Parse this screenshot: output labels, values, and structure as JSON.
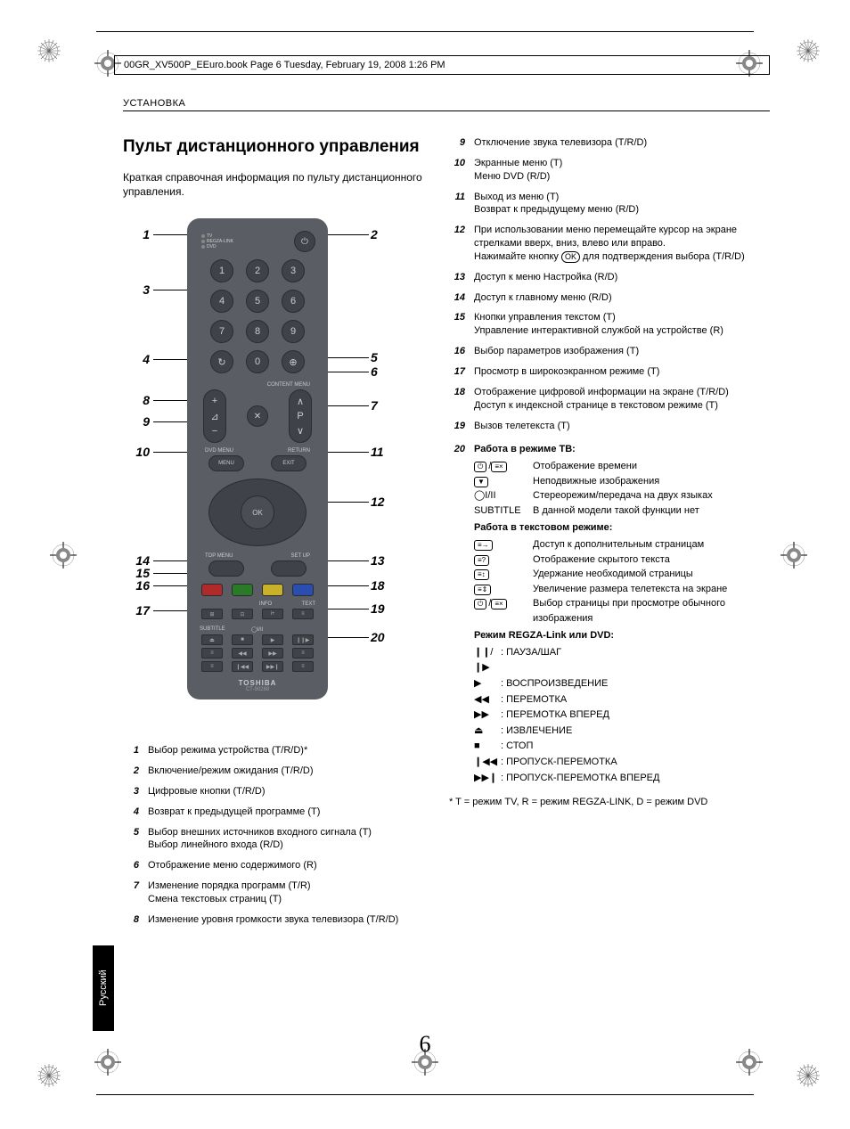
{
  "header_text": "00GR_XV500P_EEuro.book  Page 6  Tuesday, February 19, 2008  1:26 PM",
  "section_header": "УСТАНОВКА",
  "title": "Пульт дистанционного управления",
  "intro": "Краткая справочная информация по пульту дистанционного управления.",
  "remote": {
    "modes": [
      "TV",
      "REGZA-LINK",
      "DVD"
    ],
    "numbers": [
      "1",
      "2",
      "3",
      "4",
      "5",
      "6",
      "7",
      "8",
      "9",
      "↻",
      "0",
      "⊕"
    ],
    "content_menu": "CONTENT MENU",
    "p_up": "∧",
    "p_dn": "∨",
    "p_label": "P",
    "vol_up": "+",
    "vol_dn": "−",
    "mute": "✕",
    "dvd_menu_lbl": "DVD MENU",
    "return_lbl": "RETURN",
    "menu": "MENU",
    "exit": "EXIT",
    "ok": "OK",
    "top_menu_lbl": "TOP MENU",
    "setup_lbl": "SET UP",
    "info_lbl": "INFO",
    "text_lbl": "TEXT",
    "subtitle_lbl": "SUBTITLE",
    "brand": "TOSHIBA",
    "model": "CT-90288",
    "colors": [
      "#b02a2a",
      "#2a7a2a",
      "#c9b22a",
      "#2a4db0"
    ]
  },
  "callouts_left": {
    "1": 18,
    "3": 80,
    "4": 158,
    "8": 204,
    "9": 228,
    "10": 262,
    "14": 384,
    "15": 398,
    "16": 412,
    "17": 440
  },
  "callouts_right": {
    "2": 18,
    "5": 156,
    "6": 172,
    "7": 210,
    "11": 262,
    "12": 318,
    "13": 384,
    "18": 412,
    "19": 438,
    "20": 470
  },
  "items_left": [
    {
      "n": "1",
      "t": "Выбор режима устройства (T/R/D)*"
    },
    {
      "n": "2",
      "t": "Включение/режим ожидания (T/R/D)"
    },
    {
      "n": "3",
      "t": "Цифровые кнопки (T/R/D)"
    },
    {
      "n": "4",
      "t": "Возврат к предыдущей программе (T)"
    },
    {
      "n": "5",
      "t": "Выбор внешних источников входного сигнала (T)\nВыбор линейного входа (R/D)"
    },
    {
      "n": "6",
      "t": "Отображение меню содержимого (R)"
    },
    {
      "n": "7",
      "t": "Изменение порядка программ (T/R)\nСмена текстовых страниц (T)"
    },
    {
      "n": "8",
      "t": "Изменение уровня громкости звука телевизора (T/R/D)"
    }
  ],
  "items_right": [
    {
      "n": "9",
      "t": "Отключение звука телевизора (T/R/D)"
    },
    {
      "n": "10",
      "t": "Экранные меню (T)\nМеню DVD (R/D)"
    },
    {
      "n": "11",
      "t": "Выход из меню (T)\nВозврат к предыдущему меню (R/D)"
    },
    {
      "n": "12",
      "t": "При использовании меню перемещайте курсор на экране стрелками вверх, вниз, влево или вправо.",
      "ok_line": "Нажимайте кнопку  для подтверждения выбора (T/R/D)"
    },
    {
      "n": "13",
      "t": "Доступ к меню Настройка (R/D)"
    },
    {
      "n": "14",
      "t": "Доступ к главному меню (R/D)"
    },
    {
      "n": "15",
      "t": "Кнопки управления текстом (T)\nУправление интерактивной службой на устройстве (R)"
    },
    {
      "n": "16",
      "t": "Выбор параметров изображения (T)"
    },
    {
      "n": "17",
      "t": "Просмотр в широкоэкранном режиме (T)"
    },
    {
      "n": "18",
      "t": "Отображение цифровой информации на экране (T/R/D)\nДоступ к индексной странице в текстовом режиме (T)"
    },
    {
      "n": "19",
      "t": "Вызов телетекста (T)"
    }
  ],
  "item20": {
    "n": "20",
    "head": "Работа в режиме ТВ:",
    "tv_rows": [
      {
        "sym": "⏻/≡×",
        "t": "Отображение времени"
      },
      {
        "sym": "▼box",
        "t": "Неподвижные изображения"
      },
      {
        "sym": "◯I/II",
        "t": "Стереорежим/передача на двух языках"
      },
      {
        "sym": "SUBTITLE",
        "t": "В данной модели такой функции нет"
      }
    ],
    "text_head": "Работа в текстовом режиме:",
    "text_rows": [
      {
        "sym": "≡→",
        "t": "Доступ к дополнительным страницам"
      },
      {
        "sym": "≡?",
        "t": "Отображение скрытого текста"
      },
      {
        "sym": "≡↕",
        "t": "Удержание необходимой страницы"
      },
      {
        "sym": "≡⇕",
        "t": "Увеличение размера телетекста на экране"
      },
      {
        "sym": "⏻/≡×",
        "t": "Выбор страницы при просмотре обычного изображения"
      }
    ],
    "regza_head": "Режим REGZA-Link или DVD:",
    "regza_rows": [
      {
        "sym": "❙❙/❙▶",
        "t": ": ПАУЗА/ШАГ"
      },
      {
        "sym": "▶",
        "t": ": ВОСПРОИЗВЕДЕНИЕ"
      },
      {
        "sym": "◀◀",
        "t": ": ПЕРЕМОТКА"
      },
      {
        "sym": "▶▶",
        "t": ": ПЕРЕМОТКА ВПЕРЕД"
      },
      {
        "sym": "⏏",
        "t": ": ИЗВЛЕЧЕНИЕ"
      },
      {
        "sym": "■",
        "t": ": СТОП"
      },
      {
        "sym": "❙◀◀",
        "t": ": ПРОПУСК-ПЕРЕМОТКА"
      },
      {
        "sym": "▶▶❙",
        "t": ": ПРОПУСК-ПЕРЕМОТКА ВПЕРЕД"
      }
    ]
  },
  "footnote": "* T = режим TV, R = режим REGZA-LINK, D = режим DVD",
  "page_num": "6",
  "lang": "Русский"
}
